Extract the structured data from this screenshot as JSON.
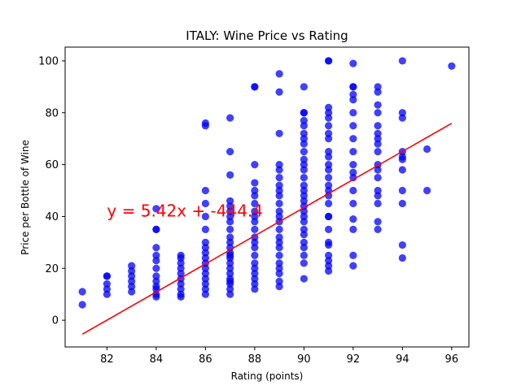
{
  "chart_data": {
    "type": "scatter",
    "title": "ITALY: Wine Price vs Rating",
    "xlabel": "Rating (points)",
    "ylabel": "Price per Bottle of Wine",
    "xlim": [
      80.3,
      96.7
    ],
    "ylim": [
      -10.3,
      105.3
    ],
    "xticks": [
      82,
      84,
      86,
      88,
      90,
      92,
      94,
      96
    ],
    "yticks": [
      0,
      20,
      40,
      60,
      80,
      100
    ],
    "xtick_labels": [
      "82",
      "84",
      "86",
      "88",
      "90",
      "92",
      "94",
      "96"
    ],
    "ytick_labels": [
      "0",
      "20",
      "40",
      "60",
      "80",
      "100"
    ],
    "grid": false,
    "legend": "none",
    "colors": {
      "points": "#0000ff",
      "fit_line": "#ff0000",
      "annotation": "#ff0000"
    },
    "fit_line": {
      "slope": 5.42,
      "intercept": -444.4,
      "x_range": [
        81,
        96
      ]
    },
    "annotation": {
      "text": "y = 5.42x + -444.4",
      "x": 82,
      "y": 40
    },
    "points": [
      [
        81,
        6
      ],
      [
        81,
        11
      ],
      [
        82,
        10
      ],
      [
        82,
        12
      ],
      [
        82,
        14
      ],
      [
        82,
        17
      ],
      [
        82,
        17
      ],
      [
        83,
        11
      ],
      [
        83,
        13
      ],
      [
        83,
        15
      ],
      [
        83,
        17
      ],
      [
        83,
        19
      ],
      [
        83,
        21
      ],
      [
        84,
        9
      ],
      [
        84,
        10
      ],
      [
        84,
        12
      ],
      [
        84,
        13
      ],
      [
        84,
        15
      ],
      [
        84,
        17
      ],
      [
        84,
        20
      ],
      [
        84,
        23
      ],
      [
        84,
        25
      ],
      [
        84,
        28
      ],
      [
        84,
        35
      ],
      [
        84,
        35
      ],
      [
        84,
        43
      ],
      [
        85,
        9
      ],
      [
        85,
        10
      ],
      [
        85,
        12
      ],
      [
        85,
        14
      ],
      [
        85,
        16
      ],
      [
        85,
        18
      ],
      [
        85,
        20
      ],
      [
        85,
        22
      ],
      [
        85,
        24
      ],
      [
        85,
        25
      ],
      [
        86,
        10
      ],
      [
        86,
        12
      ],
      [
        86,
        14
      ],
      [
        86,
        16
      ],
      [
        86,
        18
      ],
      [
        86,
        20
      ],
      [
        86,
        22
      ],
      [
        86,
        24
      ],
      [
        86,
        26
      ],
      [
        86,
        28
      ],
      [
        86,
        30
      ],
      [
        86,
        35
      ],
      [
        86,
        40
      ],
      [
        86,
        45
      ],
      [
        86,
        50
      ],
      [
        86,
        75
      ],
      [
        86,
        76
      ],
      [
        87,
        10
      ],
      [
        87,
        12
      ],
      [
        87,
        14
      ],
      [
        87,
        15
      ],
      [
        87,
        16
      ],
      [
        87,
        18
      ],
      [
        87,
        20
      ],
      [
        87,
        22
      ],
      [
        87,
        24
      ],
      [
        87,
        25
      ],
      [
        87,
        26
      ],
      [
        87,
        28
      ],
      [
        87,
        30
      ],
      [
        87,
        32
      ],
      [
        87,
        35
      ],
      [
        87,
        38
      ],
      [
        87,
        40
      ],
      [
        87,
        42
      ],
      [
        87,
        44
      ],
      [
        87,
        46
      ],
      [
        87,
        56
      ],
      [
        87,
        65
      ],
      [
        87,
        78
      ],
      [
        88,
        12
      ],
      [
        88,
        14
      ],
      [
        88,
        16
      ],
      [
        88,
        18
      ],
      [
        88,
        20
      ],
      [
        88,
        22
      ],
      [
        88,
        25
      ],
      [
        88,
        28
      ],
      [
        88,
        30
      ],
      [
        88,
        32
      ],
      [
        88,
        35
      ],
      [
        88,
        38
      ],
      [
        88,
        40
      ],
      [
        88,
        42
      ],
      [
        88,
        45
      ],
      [
        88,
        48
      ],
      [
        88,
        50
      ],
      [
        88,
        53
      ],
      [
        88,
        60
      ],
      [
        88,
        90
      ],
      [
        88,
        90
      ],
      [
        89,
        13
      ],
      [
        89,
        15
      ],
      [
        89,
        18
      ],
      [
        89,
        20
      ],
      [
        89,
        22
      ],
      [
        89,
        25
      ],
      [
        89,
        28
      ],
      [
        89,
        30
      ],
      [
        89,
        32
      ],
      [
        89,
        35
      ],
      [
        89,
        38
      ],
      [
        89,
        40
      ],
      [
        89,
        42
      ],
      [
        89,
        45
      ],
      [
        89,
        48
      ],
      [
        89,
        50
      ],
      [
        89,
        52
      ],
      [
        89,
        55
      ],
      [
        89,
        58
      ],
      [
        89,
        60
      ],
      [
        89,
        72
      ],
      [
        89,
        88
      ],
      [
        89,
        95
      ],
      [
        90,
        16
      ],
      [
        90,
        22
      ],
      [
        90,
        25
      ],
      [
        90,
        28
      ],
      [
        90,
        30
      ],
      [
        90,
        33
      ],
      [
        90,
        35
      ],
      [
        90,
        38
      ],
      [
        90,
        40
      ],
      [
        90,
        42
      ],
      [
        90,
        44
      ],
      [
        90,
        46
      ],
      [
        90,
        48
      ],
      [
        90,
        50
      ],
      [
        90,
        52
      ],
      [
        90,
        55
      ],
      [
        90,
        58
      ],
      [
        90,
        60
      ],
      [
        90,
        62
      ],
      [
        90,
        65
      ],
      [
        90,
        68
      ],
      [
        90,
        70
      ],
      [
        90,
        72
      ],
      [
        90,
        75
      ],
      [
        90,
        77
      ],
      [
        90,
        80
      ],
      [
        90,
        80
      ],
      [
        90,
        90
      ],
      [
        91,
        19
      ],
      [
        91,
        21
      ],
      [
        91,
        23
      ],
      [
        91,
        25
      ],
      [
        91,
        29
      ],
      [
        91,
        30
      ],
      [
        91,
        35
      ],
      [
        91,
        40
      ],
      [
        91,
        40
      ],
      [
        91,
        45
      ],
      [
        91,
        48
      ],
      [
        91,
        50
      ],
      [
        91,
        52
      ],
      [
        91,
        55
      ],
      [
        91,
        58
      ],
      [
        91,
        60
      ],
      [
        91,
        63
      ],
      [
        91,
        65
      ],
      [
        91,
        70
      ],
      [
        91,
        72
      ],
      [
        91,
        75
      ],
      [
        91,
        78
      ],
      [
        91,
        80
      ],
      [
        91,
        82
      ],
      [
        91,
        100
      ],
      [
        91,
        100
      ],
      [
        92,
        21
      ],
      [
        92,
        25
      ],
      [
        92,
        35
      ],
      [
        92,
        39
      ],
      [
        92,
        45
      ],
      [
        92,
        50
      ],
      [
        92,
        55
      ],
      [
        92,
        57
      ],
      [
        92,
        60
      ],
      [
        92,
        65
      ],
      [
        92,
        70
      ],
      [
        92,
        75
      ],
      [
        92,
        80
      ],
      [
        92,
        85
      ],
      [
        92,
        87
      ],
      [
        92,
        90
      ],
      [
        92,
        90
      ],
      [
        92,
        99
      ],
      [
        93,
        35
      ],
      [
        93,
        38
      ],
      [
        93,
        45
      ],
      [
        93,
        48
      ],
      [
        93,
        50
      ],
      [
        93,
        55
      ],
      [
        93,
        58
      ],
      [
        93,
        60
      ],
      [
        93,
        65
      ],
      [
        93,
        68
      ],
      [
        93,
        70
      ],
      [
        93,
        72
      ],
      [
        93,
        75
      ],
      [
        93,
        80
      ],
      [
        93,
        83
      ],
      [
        93,
        88
      ],
      [
        93,
        90
      ],
      [
        94,
        24
      ],
      [
        94,
        29
      ],
      [
        94,
        45
      ],
      [
        94,
        50
      ],
      [
        94,
        58
      ],
      [
        94,
        62
      ],
      [
        94,
        63
      ],
      [
        94,
        65
      ],
      [
        94,
        78
      ],
      [
        94,
        80
      ],
      [
        94,
        100
      ],
      [
        95,
        50
      ],
      [
        95,
        66
      ],
      [
        96,
        98
      ]
    ]
  }
}
